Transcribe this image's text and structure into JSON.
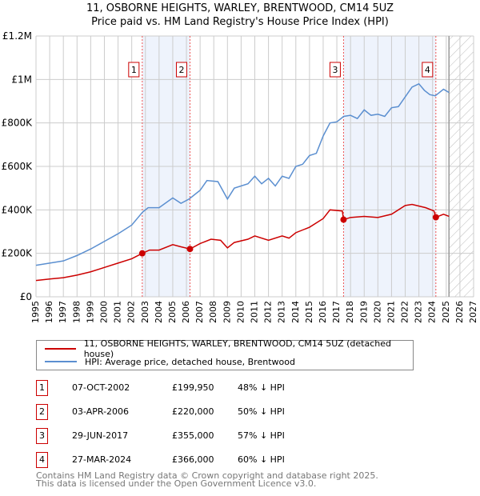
{
  "title": "11, OSBORNE HEIGHTS, WARLEY, BRENTWOOD, CM14 5UZ",
  "subtitle": "Price paid vs. HM Land Registry's House Price Index (HPI)",
  "chart_data": {
    "type": "line",
    "xlim": [
      1995,
      2027
    ],
    "ylim": [
      0,
      1200000
    ],
    "x_ticks": [
      "1995",
      "1996",
      "1997",
      "1998",
      "1999",
      "2000",
      "2001",
      "2002",
      "2003",
      "2004",
      "2005",
      "2006",
      "2007",
      "2008",
      "2009",
      "2010",
      "2011",
      "2012",
      "2013",
      "2014",
      "2015",
      "2016",
      "2017",
      "2018",
      "2019",
      "2020",
      "2021",
      "2022",
      "2023",
      "2024",
      "2025",
      "2026",
      "2027"
    ],
    "y_ticks": [
      {
        "v": 0,
        "label": "£0"
      },
      {
        "v": 200000,
        "label": "£200K"
      },
      {
        "v": 400000,
        "label": "£400K"
      },
      {
        "v": 600000,
        "label": "£600K"
      },
      {
        "v": 800000,
        "label": "£800K"
      },
      {
        "v": 1000000,
        "label": "£1M"
      },
      {
        "v": 1200000,
        "label": "£1.2M"
      }
    ],
    "forecast_start": 2025.2,
    "series": [
      {
        "name": "11, OSBORNE HEIGHTS, WARLEY, BRENTWOOD, CM14 5UZ (detached house)",
        "color": "#cc0000",
        "points": [
          [
            1995,
            75000
          ],
          [
            1996,
            82000
          ],
          [
            1997,
            88000
          ],
          [
            1998,
            100000
          ],
          [
            1999,
            115000
          ],
          [
            2000,
            135000
          ],
          [
            2001,
            155000
          ],
          [
            2002,
            175000
          ],
          [
            2002.77,
            199950
          ],
          [
            2003.3,
            215000
          ],
          [
            2004,
            215000
          ],
          [
            2005,
            240000
          ],
          [
            2005.6,
            230000
          ],
          [
            2006.26,
            220000
          ],
          [
            2007,
            245000
          ],
          [
            2007.8,
            265000
          ],
          [
            2008.5,
            260000
          ],
          [
            2009,
            225000
          ],
          [
            2009.5,
            250000
          ],
          [
            2010.5,
            265000
          ],
          [
            2011,
            280000
          ],
          [
            2012,
            260000
          ],
          [
            2013,
            280000
          ],
          [
            2013.5,
            270000
          ],
          [
            2014,
            295000
          ],
          [
            2015,
            320000
          ],
          [
            2016,
            360000
          ],
          [
            2016.5,
            400000
          ],
          [
            2017.4,
            395000
          ],
          [
            2017.49,
            355000
          ],
          [
            2018,
            365000
          ],
          [
            2019,
            370000
          ],
          [
            2020,
            365000
          ],
          [
            2021,
            380000
          ],
          [
            2022,
            420000
          ],
          [
            2022.5,
            425000
          ],
          [
            2023.5,
            410000
          ],
          [
            2024.1,
            395000
          ],
          [
            2024.24,
            366000
          ],
          [
            2024.8,
            380000
          ],
          [
            2025.2,
            370000
          ]
        ]
      },
      {
        "name": "HPI: Average price, detached house, Brentwood",
        "color": "#5b8fd0",
        "points": [
          [
            1995,
            145000
          ],
          [
            1996,
            155000
          ],
          [
            1997,
            165000
          ],
          [
            1998,
            190000
          ],
          [
            1999,
            220000
          ],
          [
            2000,
            255000
          ],
          [
            2001,
            290000
          ],
          [
            2002,
            330000
          ],
          [
            2002.8,
            390000
          ],
          [
            2003.2,
            410000
          ],
          [
            2004,
            410000
          ],
          [
            2005,
            455000
          ],
          [
            2005.6,
            430000
          ],
          [
            2006.2,
            450000
          ],
          [
            2007,
            490000
          ],
          [
            2007.5,
            535000
          ],
          [
            2008.3,
            530000
          ],
          [
            2009,
            450000
          ],
          [
            2009.5,
            500000
          ],
          [
            2010.5,
            520000
          ],
          [
            2011,
            555000
          ],
          [
            2011.5,
            520000
          ],
          [
            2012,
            545000
          ],
          [
            2012.5,
            510000
          ],
          [
            2013,
            555000
          ],
          [
            2013.5,
            545000
          ],
          [
            2014,
            600000
          ],
          [
            2014.5,
            610000
          ],
          [
            2015,
            650000
          ],
          [
            2015.5,
            660000
          ],
          [
            2016,
            740000
          ],
          [
            2016.5,
            800000
          ],
          [
            2017,
            805000
          ],
          [
            2017.5,
            830000
          ],
          [
            2018,
            835000
          ],
          [
            2018.5,
            820000
          ],
          [
            2019,
            860000
          ],
          [
            2019.5,
            835000
          ],
          [
            2020,
            840000
          ],
          [
            2020.5,
            830000
          ],
          [
            2021,
            870000
          ],
          [
            2021.5,
            875000
          ],
          [
            2022,
            920000
          ],
          [
            2022.5,
            965000
          ],
          [
            2023,
            980000
          ],
          [
            2023.4,
            950000
          ],
          [
            2023.8,
            930000
          ],
          [
            2024.2,
            925000
          ],
          [
            2024.8,
            955000
          ],
          [
            2025.2,
            940000
          ]
        ]
      }
    ],
    "sales": [
      {
        "n": "1",
        "x": 2002.77,
        "date": "07-OCT-2002",
        "price": 199950,
        "price_label": "£199,950",
        "hpi": "48% ↓ HPI"
      },
      {
        "n": "2",
        "x": 2006.26,
        "date": "03-APR-2006",
        "price": 220000,
        "price_label": "£220,000",
        "hpi": "50% ↓ HPI"
      },
      {
        "n": "3",
        "x": 2017.49,
        "date": "29-JUN-2017",
        "price": 355000,
        "price_label": "£355,000",
        "hpi": "57% ↓ HPI"
      },
      {
        "n": "4",
        "x": 2024.24,
        "date": "27-MAR-2024",
        "price": 366000,
        "price_label": "£366,000",
        "hpi": "60% ↓ HPI"
      }
    ]
  },
  "footer": [
    "Contains HM Land Registry data © Crown copyright and database right 2025.",
    "This data is licensed under the Open Government Licence v3.0."
  ]
}
